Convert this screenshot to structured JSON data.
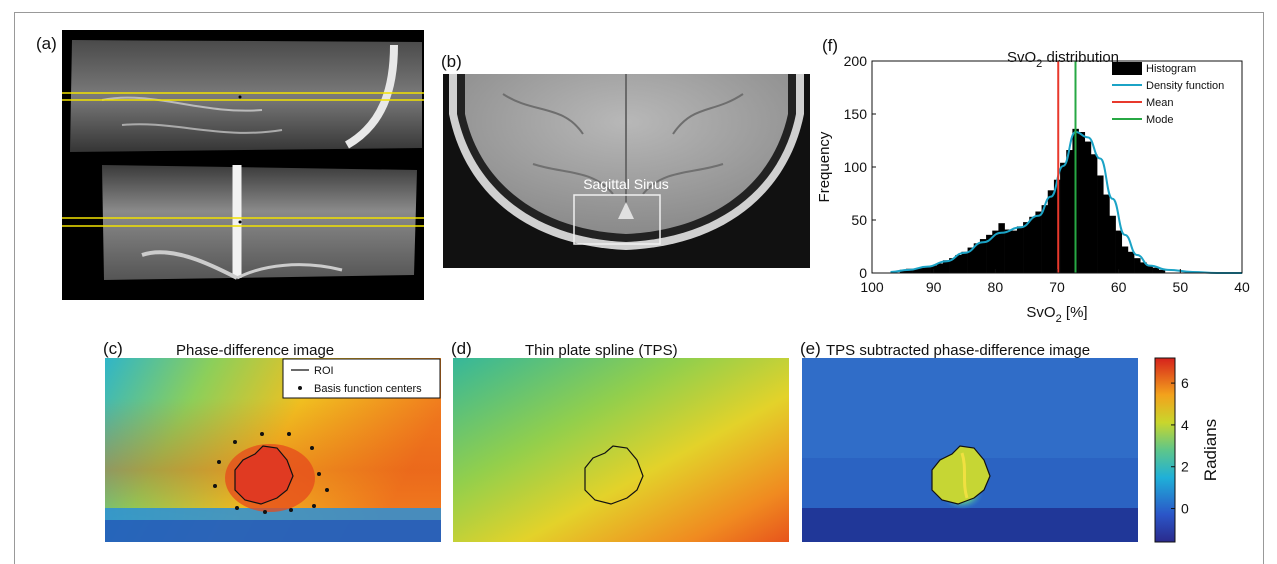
{
  "figure": {
    "panel_a": {
      "label": "(a)"
    },
    "panel_b": {
      "label": "(b)",
      "annotation": "Sagittal Sinus"
    },
    "panel_c": {
      "label": "(c)",
      "title": "Phase-difference image",
      "legend": [
        "ROI",
        "Basis function centers"
      ]
    },
    "panel_d": {
      "label": "(d)",
      "title": "Thin plate spline (TPS)"
    },
    "panel_e": {
      "label": "(e)",
      "title": "TPS subtracted phase-difference image"
    },
    "panel_f": {
      "label": "(f)"
    },
    "colorbar": {
      "label": "Radians",
      "ticks": [
        "6",
        "4",
        "2",
        "0"
      ],
      "tick_values": [
        6,
        4,
        2,
        0
      ],
      "range": [
        -1.6,
        7.2
      ]
    }
  },
  "chart_data": {
    "type": "bar",
    "title_text": "SvO",
    "title_sub": "2",
    "title_suffix": " distribution",
    "xlabel_text": "SvO",
    "xlabel_sub": "2",
    "xlabel_suffix": " [%]",
    "ylabel": "Frequency",
    "xlim": [
      100,
      40
    ],
    "ylim": [
      0,
      200
    ],
    "x_reversed": true,
    "xticks": [
      100,
      90,
      80,
      70,
      60,
      50,
      40
    ],
    "yticks": [
      0,
      50,
      100,
      150,
      200
    ],
    "legend": {
      "position": "top-right",
      "entries": [
        "Histogram",
        "Density function",
        "Mean",
        "Mode"
      ]
    },
    "mean": 69.8,
    "mode": 67.0,
    "colors": {
      "histogram": "#000000",
      "density": "#1ba3c6",
      "mean": "#e8392c",
      "mode": "#27a844"
    },
    "bins": [
      95,
      94,
      93,
      92,
      91,
      90,
      89,
      88,
      87,
      86,
      85,
      84,
      83,
      82,
      81,
      80,
      79,
      78,
      77,
      76,
      75,
      74,
      73,
      72,
      71,
      70,
      69,
      68,
      67,
      66,
      65,
      64,
      63,
      62,
      61,
      60,
      59,
      58,
      57,
      56,
      55,
      54,
      53
    ],
    "counts": [
      3,
      4,
      4,
      5,
      6,
      7,
      9,
      12,
      14,
      17,
      20,
      24,
      28,
      32,
      36,
      40,
      47,
      41,
      40,
      44,
      48,
      53,
      58,
      64,
      78,
      88,
      104,
      116,
      136,
      133,
      124,
      112,
      92,
      74,
      54,
      40,
      25,
      20,
      14,
      10,
      7,
      5,
      3
    ],
    "density_x": [
      97,
      94,
      91,
      88,
      85,
      82,
      79,
      76,
      73,
      71,
      69,
      67,
      65,
      63,
      61,
      59,
      57,
      55,
      52,
      48,
      44,
      40
    ],
    "density_y": [
      1,
      3,
      6,
      11,
      19,
      29,
      38,
      43,
      54,
      72,
      101,
      133,
      128,
      108,
      70,
      36,
      17,
      7,
      3,
      1,
      0,
      0
    ]
  }
}
